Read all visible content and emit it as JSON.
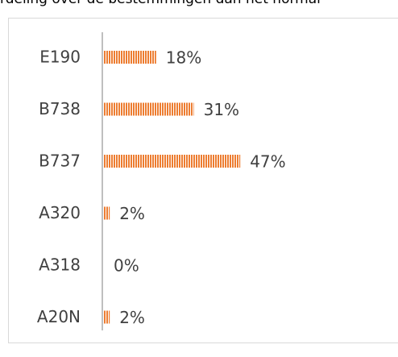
{
  "caption": "rdeling over de bestemmingen dan het normal",
  "chart_data": {
    "type": "bar",
    "orientation": "horizontal",
    "categories": [
      "E190",
      "B738",
      "B737",
      "A320",
      "A318",
      "A20N"
    ],
    "values": [
      18,
      31,
      47,
      2,
      0,
      2
    ],
    "value_labels": [
      "18%",
      "31%",
      "47%",
      "2%",
      "0%",
      "2%"
    ],
    "color": "#ED7D31"
  }
}
